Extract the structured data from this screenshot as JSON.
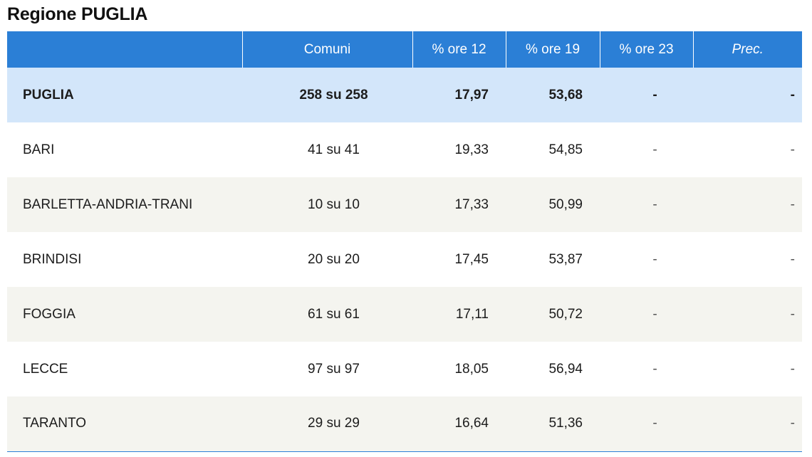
{
  "title": "Regione PUGLIA",
  "headers": [
    "",
    "Comuni",
    "% ore 12",
    "% ore 19",
    "% ore 23",
    "Prec."
  ],
  "region": {
    "name": "PUGLIA",
    "comuni": "258 su 258",
    "ore12": "17,97",
    "ore19": "53,68",
    "ore23": "-",
    "prec": "-"
  },
  "rows": [
    {
      "name": "BARI",
      "comuni": "41 su 41",
      "ore12": "19,33",
      "ore19": "54,85",
      "ore23": "-",
      "prec": "-"
    },
    {
      "name": "BARLETTA-ANDRIA-TRANI",
      "comuni": "10 su 10",
      "ore12": "17,33",
      "ore19": "50,99",
      "ore23": "-",
      "prec": "-"
    },
    {
      "name": "BRINDISI",
      "comuni": "20 su 20",
      "ore12": "17,45",
      "ore19": "53,87",
      "ore23": "-",
      "prec": "-"
    },
    {
      "name": "FOGGIA",
      "comuni": "61 su 61",
      "ore12": "17,11",
      "ore19": "50,72",
      "ore23": "-",
      "prec": "-"
    },
    {
      "name": "LECCE",
      "comuni": "97 su 97",
      "ore12": "18,05",
      "ore19": "56,94",
      "ore23": "-",
      "prec": "-"
    },
    {
      "name": "TARANTO",
      "comuni": "29 su 29",
      "ore12": "16,64",
      "ore19": "51,36",
      "ore23": "-",
      "prec": "-"
    }
  ],
  "colors": {
    "header_bg": "#2b7fd6",
    "region_row_bg": "#d3e6fa",
    "stripe_bg": "#f4f4ef"
  }
}
